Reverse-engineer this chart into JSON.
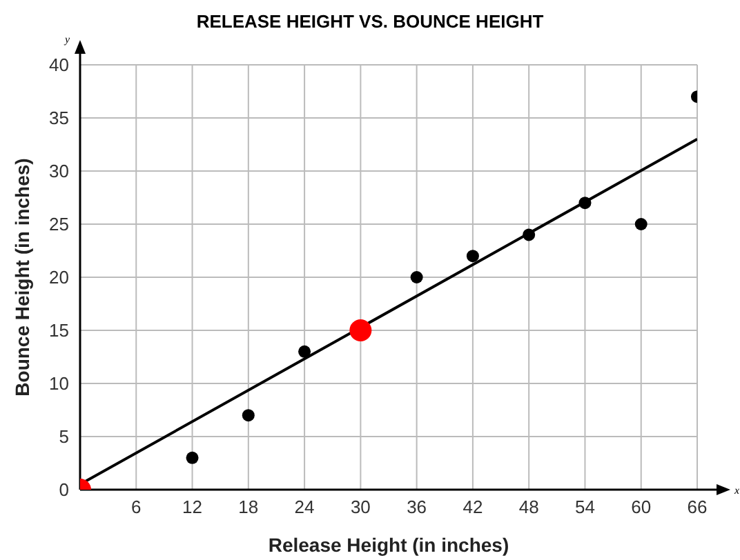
{
  "chart_data": {
    "type": "scatter",
    "title": "RELEASE HEIGHT VS. BOUNCE HEIGHT",
    "xlabel": "Release Height (in inches)",
    "ylabel": "Bounce Height (in inches)",
    "annotations": [
      "x",
      "y"
    ],
    "xlim": [
      0,
      66
    ],
    "ylim": [
      0,
      40
    ],
    "xticks": [
      {
        "value": 0,
        "label": null
      },
      6,
      12,
      18,
      24,
      30,
      36,
      42,
      48,
      54,
      60,
      66
    ],
    "yticks": [
      0,
      5,
      10,
      15,
      20,
      25,
      30,
      35,
      40
    ],
    "grid": true,
    "marker": "circle",
    "series": [
      {
        "color": "#000000",
        "x": [
          12,
          18,
          24,
          36,
          42,
          48,
          54,
          60,
          66
        ],
        "values": [
          3,
          7,
          13,
          20,
          22,
          24,
          27,
          25,
          37
        ]
      },
      {
        "type": "line",
        "color": "#000000",
        "marker": "none",
        "x": [
          0,
          66
        ],
        "values": [
          0.5,
          33
        ]
      },
      {
        "type": "scatter",
        "color": "#ff0000",
        "x": [
          0,
          30
        ],
        "values": [
          0,
          15
        ]
      }
    ]
  }
}
